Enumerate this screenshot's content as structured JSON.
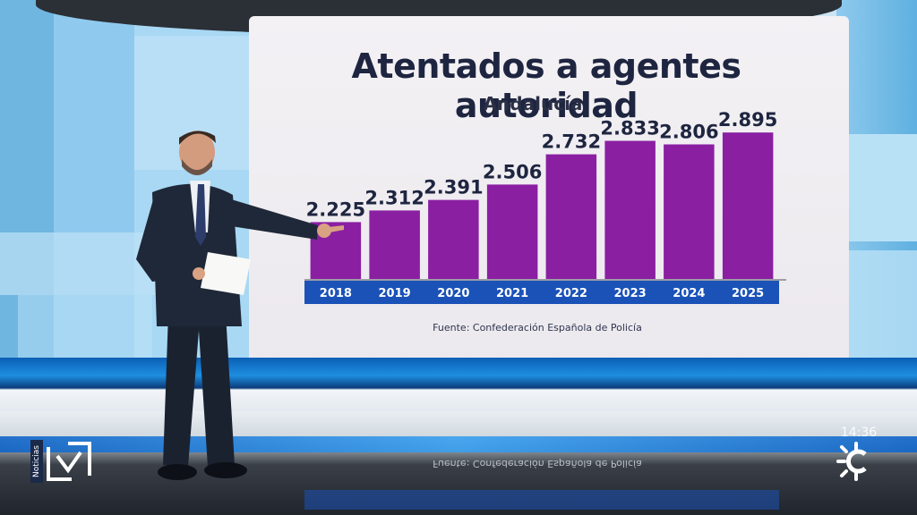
{
  "chart_data": {
    "type": "bar",
    "title": "Atentados a agentes autoridad",
    "subtitle": "Andalucía",
    "categories": [
      "2018",
      "2019",
      "2020",
      "2021",
      "2022",
      "2023",
      "2024",
      "2025"
    ],
    "values": [
      2225,
      2312,
      2391,
      2506,
      2732,
      2833,
      2806,
      2895
    ],
    "value_labels": [
      "2.225",
      "2.312",
      "2.391",
      "2.506",
      "2.732",
      "2.833",
      "2.806",
      "2.895"
    ],
    "ylim": [
      1800,
      2950
    ],
    "grid": false,
    "legend": "none",
    "source": "Fuente: Confederación Española de Policía",
    "colors": {
      "bar": "#8a1fa2",
      "axis_band": "#1a52b8",
      "axis_text": "#ffffff",
      "title": "#1e2540"
    }
  },
  "overlay": {
    "channel_label": "Noticias",
    "clock": "14:36"
  },
  "icons": {
    "left_logo": "canal-sur-noticias-logo",
    "right_logo": "canal-sur-sun-logo"
  }
}
